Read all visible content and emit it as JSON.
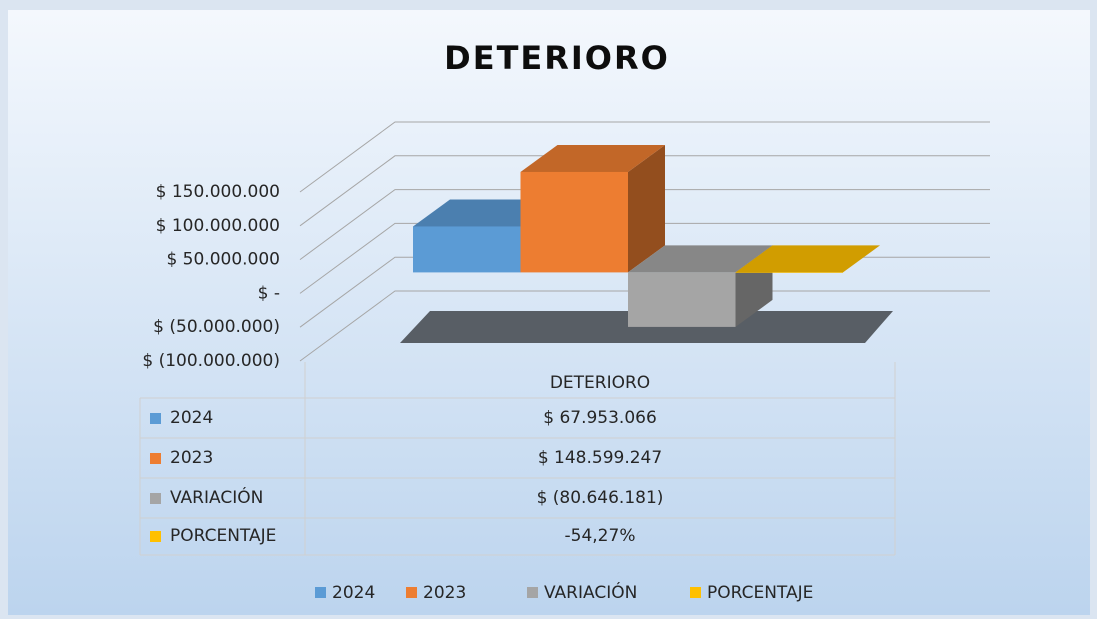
{
  "chart_data": {
    "type": "bar",
    "title": "DETERIORO",
    "categories": [
      "DETERIORO"
    ],
    "series": [
      {
        "name": "2024",
        "color": "#5b9bd5",
        "values": [
          67953066
        ],
        "value_labels": [
          "$ 67.953.066"
        ]
      },
      {
        "name": "2023",
        "color": "#ed7d31",
        "values": [
          148599247
        ],
        "value_labels": [
          "$ 148.599.247"
        ]
      },
      {
        "name": "VARIACIÓN",
        "color": "#a5a5a5",
        "values": [
          -80646181
        ],
        "value_labels": [
          "$ (80.646.181)"
        ]
      },
      {
        "name": "PORCENTAJE",
        "color": "#ffc000",
        "values": [
          -54.27
        ],
        "value_labels": [
          "-54,27%"
        ]
      }
    ],
    "ylim": [
      -100000000,
      150000000
    ],
    "yticks": [
      {
        "value": -100000000,
        "label": "$ (100.000.000)"
      },
      {
        "value": -50000000,
        "label": "$ (50.000.000)"
      },
      {
        "value": 0,
        "label": "$ -"
      },
      {
        "value": 50000000,
        "label": "$ 50.000.000"
      },
      {
        "value": 100000000,
        "label": "$ 100.000.000"
      },
      {
        "value": 150000000,
        "label": "$ 150.000.000"
      }
    ],
    "grid": true,
    "legend": "bottom"
  }
}
